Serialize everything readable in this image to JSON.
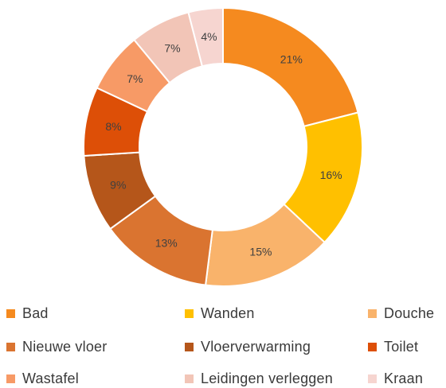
{
  "chart_data": {
    "type": "pie",
    "donut": true,
    "title": "",
    "legend": "bottom",
    "categories": [
      "Bad",
      "Wanden",
      "Douche",
      "Nieuwe vloer",
      "Vloerverwarming",
      "Toilet",
      "Wastafel",
      "Leidingen verleggen",
      "Kraan"
    ],
    "values": [
      21,
      16,
      15,
      13,
      9,
      8,
      7,
      7,
      4
    ],
    "labels": [
      "21%",
      "16%",
      "15%",
      "13%",
      "9%",
      "8%",
      "7%",
      "7%",
      "4%"
    ],
    "colors": [
      "#F58A1F",
      "#FFC000",
      "#F9B36B",
      "#DA7430",
      "#B5561A",
      "#DD4F07",
      "#F79A66",
      "#F2C5B7",
      "#F6D5D0"
    ]
  }
}
